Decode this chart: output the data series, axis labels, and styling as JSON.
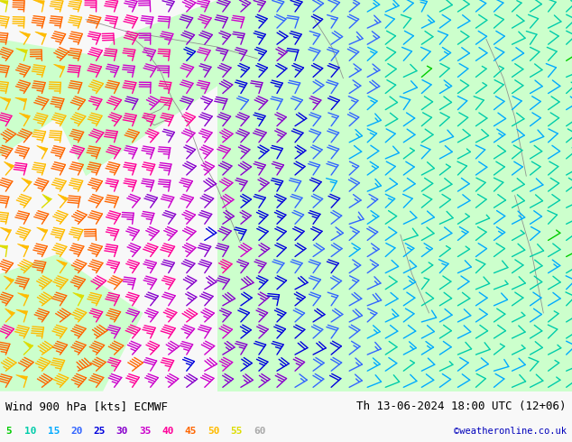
{
  "title": "Wind 900 hPa [kts] ECMWF",
  "date_str": "Th 13-06-2024 18:00 UTC (12+06)",
  "credit": "©weatheronline.co.uk",
  "legend_values": [
    5,
    10,
    15,
    20,
    25,
    30,
    35,
    40,
    45,
    50,
    55,
    60
  ],
  "legend_colors": [
    "#00cc00",
    "#00ccaa",
    "#00aaff",
    "#3366ff",
    "#0000dd",
    "#8800cc",
    "#cc00cc",
    "#ff0099",
    "#ff6600",
    "#ffbb00",
    "#dddd00",
    "#aaaaaa"
  ],
  "bg_color_left": "#f0f0f0",
  "bg_color_right": "#ccffcc",
  "title_color": "#000000",
  "title_fontsize": 9,
  "legend_fontsize": 8,
  "date_color": "#000000",
  "credit_color": "#0000bb",
  "nx": 32,
  "ny": 24,
  "map_patch_color": "#ccffcc"
}
